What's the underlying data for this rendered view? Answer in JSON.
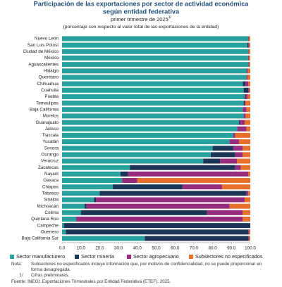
{
  "chart_data": {
    "type": "stacked-barh",
    "title_lines": [
      "Participación de las exportaciones por sector de actividad económica",
      "según entidad federativa"
    ],
    "subtitle": "primer trimestre de 2025",
    "subtitle_note": "1/",
    "caption": "(porcentaje con respecto al valor total de las exportaciones de la entidad)",
    "categories": [
      "Nuevo León",
      "San Luis Potosí",
      "Ciudad de México",
      "México",
      "Aguascalientes",
      "Hidalgo",
      "Querétaro",
      "Chihuahua",
      "Coahuila",
      "Puebla",
      "Tamaulipas",
      "Baja California",
      "Morelos",
      "Guanajuato",
      "Jalisco",
      "Tlaxcala",
      "Yucatán",
      "Sonora",
      "Durango",
      "Veracruz",
      "Zacatecas",
      "Nayarit",
      "Oaxaca",
      "Chiapas",
      "Tabasco",
      "Sinaloa",
      "Michoacán",
      "Colima",
      "Quintana Roo",
      "Campeche",
      "Guerrero",
      "Baja California Sur"
    ],
    "series": [
      {
        "name": "Sector manufacturero",
        "color": "#27a09e",
        "values": [
          98.9,
          98.5,
          99,
          98.8,
          99,
          98,
          98,
          96,
          96.5,
          97,
          96.5,
          96,
          96.5,
          94,
          93,
          91,
          89,
          80,
          79,
          75,
          36,
          31,
          32,
          27,
          20,
          17,
          12,
          10,
          7.5,
          1,
          2,
          44
        ]
      },
      {
        "name": "Sector minería",
        "color": "#1c3557",
        "values": [
          0.1,
          0.5,
          0,
          0,
          0,
          0.2,
          0,
          1.5,
          2.5,
          0.2,
          0.5,
          0,
          0,
          0.5,
          0.2,
          0,
          0,
          11,
          13,
          9,
          56,
          4,
          0,
          37,
          78,
          1,
          1,
          67,
          0,
          99,
          97,
          55
        ]
      },
      {
        "name": "Sector agropecuario",
        "color": "#962c7e",
        "values": [
          0.3,
          0.5,
          0.3,
          0.5,
          0.5,
          0.5,
          0.5,
          1.5,
          0.5,
          1.3,
          0.5,
          2,
          1,
          2.5,
          4.8,
          1,
          5,
          5,
          4,
          9,
          3,
          64,
          8,
          21,
          1,
          79,
          76,
          19,
          88.5,
          0,
          0.5,
          0.5
        ]
      },
      {
        "name": "Subsectores no especificados",
        "color": "#e8702a",
        "values": [
          0.7,
          0.5,
          0.7,
          0.7,
          0.5,
          1.3,
          1.5,
          1,
          0.5,
          1.5,
          2.5,
          2,
          2.5,
          3,
          2,
          8,
          6,
          4,
          4,
          7,
          5,
          1,
          60,
          15,
          1,
          3,
          11,
          4,
          4,
          0,
          0.5,
          0.5
        ]
      }
    ],
    "xlim": [
      0,
      100
    ],
    "xticks": [
      {
        "value": 0,
        "label": "0.0"
      },
      {
        "value": 10,
        "label": "10.0"
      },
      {
        "value": 20,
        "label": "20.0"
      },
      {
        "value": 30,
        "label": "30.0"
      },
      {
        "value": 40,
        "label": "40.0"
      },
      {
        "value": 50,
        "label": "50.0"
      },
      {
        "value": 60,
        "label": "60.0"
      },
      {
        "value": 70,
        "label": "70.0"
      },
      {
        "value": 80,
        "label": "80.0"
      },
      {
        "value": 90,
        "label": "90.0"
      },
      {
        "value": 100,
        "label": "100.0"
      }
    ],
    "legend": "bottom"
  },
  "notes": {
    "nota_label": "Nota:",
    "nota_text": "Subsectores no especificados incluye información que, por motivos de confidencialidad, no se puede proporcionar en forma desagregada.",
    "prelim_label": "1/",
    "prelim_text": "Cifras preliminares.",
    "source": "Fuente: INEGI. Exportaciones Trimestrales por Entidad Federativa (ETEF). 2025."
  }
}
